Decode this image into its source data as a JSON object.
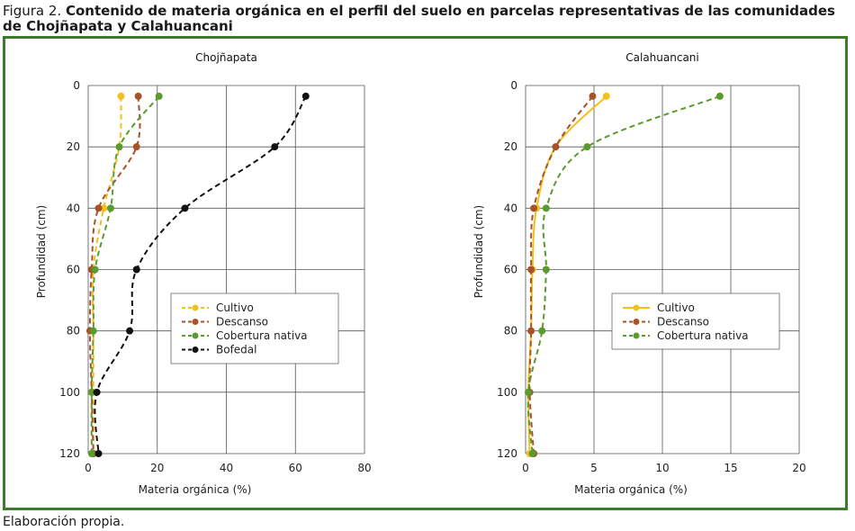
{
  "caption": {
    "label": "Figura 2.",
    "title": "Contenido de materia orgánica en el perfil del suelo en parcelas representativas de las comunidades de Chojñapata y Calahuancani"
  },
  "source_note": "Elaboración propia.",
  "colors": {
    "frame": "#3c7a2c",
    "Cultivo": "#f2c01e",
    "Descanso": "#a8522a",
    "Cobertura nativa": "#5a9a2e",
    "Bofedal": "#111111"
  },
  "chart_data": [
    {
      "type": "line",
      "title": "Chojñapata",
      "xlabel": "Materia orgánica (%)",
      "ylabel": "Profundidad (cm)",
      "xlim": [
        0,
        80
      ],
      "ylim": [
        0,
        120
      ],
      "y_inverted": true,
      "xticks": [
        "0",
        "20",
        "40",
        "60",
        "80"
      ],
      "yticks": [
        "0",
        "20",
        "40",
        "60",
        "80",
        "100",
        "120"
      ],
      "grid": true,
      "legend_position": "center-right",
      "series": [
        {
          "name": "Cultivo",
          "color": "#f2c01e",
          "style": "dashed",
          "points": [
            [
              9.5,
              3.5
            ],
            [
              9,
              20
            ],
            [
              4.5,
              40
            ],
            [
              1.5,
              60
            ],
            [
              1.5,
              80
            ],
            [
              1.5,
              100
            ],
            [
              1.5,
              120
            ]
          ]
        },
        {
          "name": "Descanso",
          "color": "#a8522a",
          "style": "dashed",
          "points": [
            [
              14.5,
              3.5
            ],
            [
              14,
              20
            ],
            [
              3,
              40
            ],
            [
              1,
              60
            ],
            [
              0.5,
              80
            ],
            [
              1,
              100
            ],
            [
              1.5,
              120
            ]
          ]
        },
        {
          "name": "Cobertura nativa",
          "color": "#5a9a2e",
          "style": "dashed",
          "points": [
            [
              20.5,
              3.5
            ],
            [
              9,
              20
            ],
            [
              6.5,
              40
            ],
            [
              2,
              60
            ],
            [
              1.5,
              80
            ],
            [
              1,
              100
            ],
            [
              1,
              120
            ]
          ]
        },
        {
          "name": "Bofedal",
          "color": "#111111",
          "style": "dashed",
          "points": [
            [
              63,
              3.5
            ],
            [
              54,
              20
            ],
            [
              28,
              40
            ],
            [
              14,
              60
            ],
            [
              12,
              80
            ],
            [
              2.5,
              100
            ],
            [
              3,
              120
            ]
          ]
        }
      ]
    },
    {
      "type": "line",
      "title": "Calahuancani",
      "xlabel": "Materia orgánica (%)",
      "ylabel": "Profundidad (cm)",
      "xlim": [
        0,
        20
      ],
      "ylim": [
        0,
        120
      ],
      "y_inverted": true,
      "xticks": [
        "0",
        "5",
        "10",
        "15",
        "20"
      ],
      "yticks": [
        "0",
        "20",
        "40",
        "60",
        "80",
        "100",
        "120"
      ],
      "grid": true,
      "legend_position": "center-right",
      "series": [
        {
          "name": "Cultivo",
          "color": "#f2c01e",
          "style": "solid",
          "points": [
            [
              5.9,
              3.5
            ],
            [
              2.2,
              20
            ],
            [
              0.8,
              40
            ],
            [
              0.5,
              60
            ],
            [
              0.4,
              80
            ],
            [
              0.2,
              100
            ],
            [
              0.3,
              120
            ]
          ]
        },
        {
          "name": "Descanso",
          "color": "#a8522a",
          "style": "dashed",
          "points": [
            [
              4.9,
              3.5
            ],
            [
              2.2,
              20
            ],
            [
              0.6,
              40
            ],
            [
              0.4,
              60
            ],
            [
              0.4,
              80
            ],
            [
              0.3,
              100
            ],
            [
              0.6,
              120
            ]
          ]
        },
        {
          "name": "Cobertura nativa",
          "color": "#5a9a2e",
          "style": "dashed",
          "points": [
            [
              14.2,
              3.5
            ],
            [
              4.5,
              20
            ],
            [
              1.5,
              40
            ],
            [
              1.5,
              60
            ],
            [
              1.2,
              80
            ],
            [
              0.2,
              100
            ],
            [
              0.5,
              120
            ]
          ]
        }
      ]
    }
  ]
}
